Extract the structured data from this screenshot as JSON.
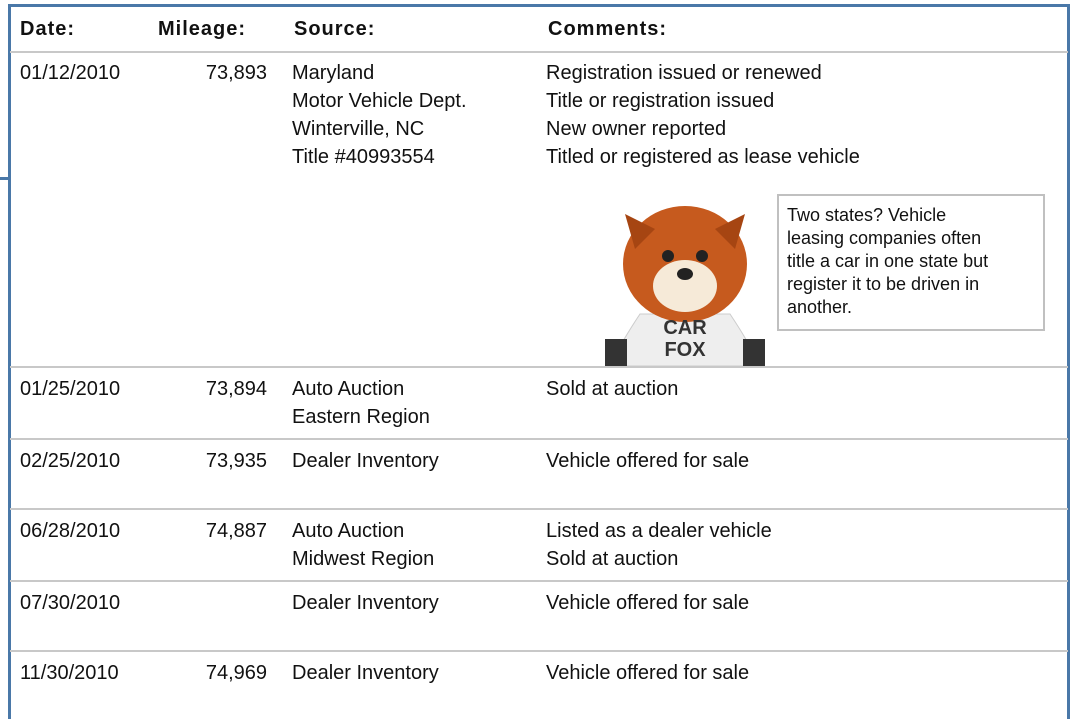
{
  "table": {
    "headers": [
      "Date:",
      "Mileage:",
      "Source:",
      "Comments:"
    ],
    "rows": [
      {
        "date": "01/12/2010",
        "mileage": "73,893",
        "source": [
          "Maryland",
          "Motor Vehicle Dept.",
          "Winterville, NC",
          "Title #40993554"
        ],
        "comments": [
          "Registration issued or renewed",
          "Title or registration issued",
          "New owner reported",
          "Titled or registered as lease vehicle"
        ]
      },
      {
        "date": "01/25/2010",
        "mileage": "73,894",
        "source": [
          "Auto Auction",
          "Eastern Region"
        ],
        "comments": [
          "Sold at auction"
        ]
      },
      {
        "date": "02/25/2010",
        "mileage": "73,935",
        "source": [
          "Dealer Inventory"
        ],
        "comments": [
          "Vehicle offered for sale"
        ]
      },
      {
        "date": "06/28/2010",
        "mileage": "74,887",
        "source": [
          "Auto Auction",
          "Midwest Region"
        ],
        "comments": [
          "Listed as a dealer vehicle",
          "Sold at auction"
        ]
      },
      {
        "date": "07/30/2010",
        "mileage": null,
        "source": [
          "Dealer Inventory"
        ],
        "comments": [
          "Vehicle offered for sale"
        ]
      },
      {
        "date": "11/30/2010",
        "mileage": "74,969",
        "source": [
          "Dealer Inventory"
        ],
        "comments": [
          "Vehicle offered for sale"
        ]
      }
    ]
  },
  "callout": {
    "lines": [
      "Two states? Vehicle",
      "leasing companies often",
      "title a car in one state but",
      "register it to be driven in",
      "another."
    ]
  },
  "mascot": {
    "shirt": [
      "CAR",
      "FOX"
    ]
  }
}
